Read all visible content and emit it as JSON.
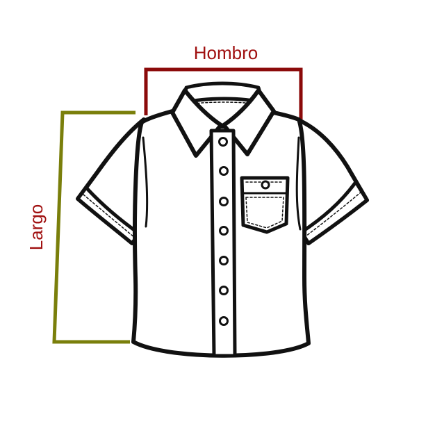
{
  "measurements": {
    "shoulder": {
      "label": "Hombro",
      "line_color": "#8b0a0a",
      "text_color": "#a01010"
    },
    "length": {
      "label": "Largo",
      "line_color": "#7a7f0b",
      "text_color": "#a01010"
    }
  },
  "garment": {
    "kind": "short-sleeve shirt",
    "outline_color": "#111111",
    "fill_color": "#ffffff"
  }
}
